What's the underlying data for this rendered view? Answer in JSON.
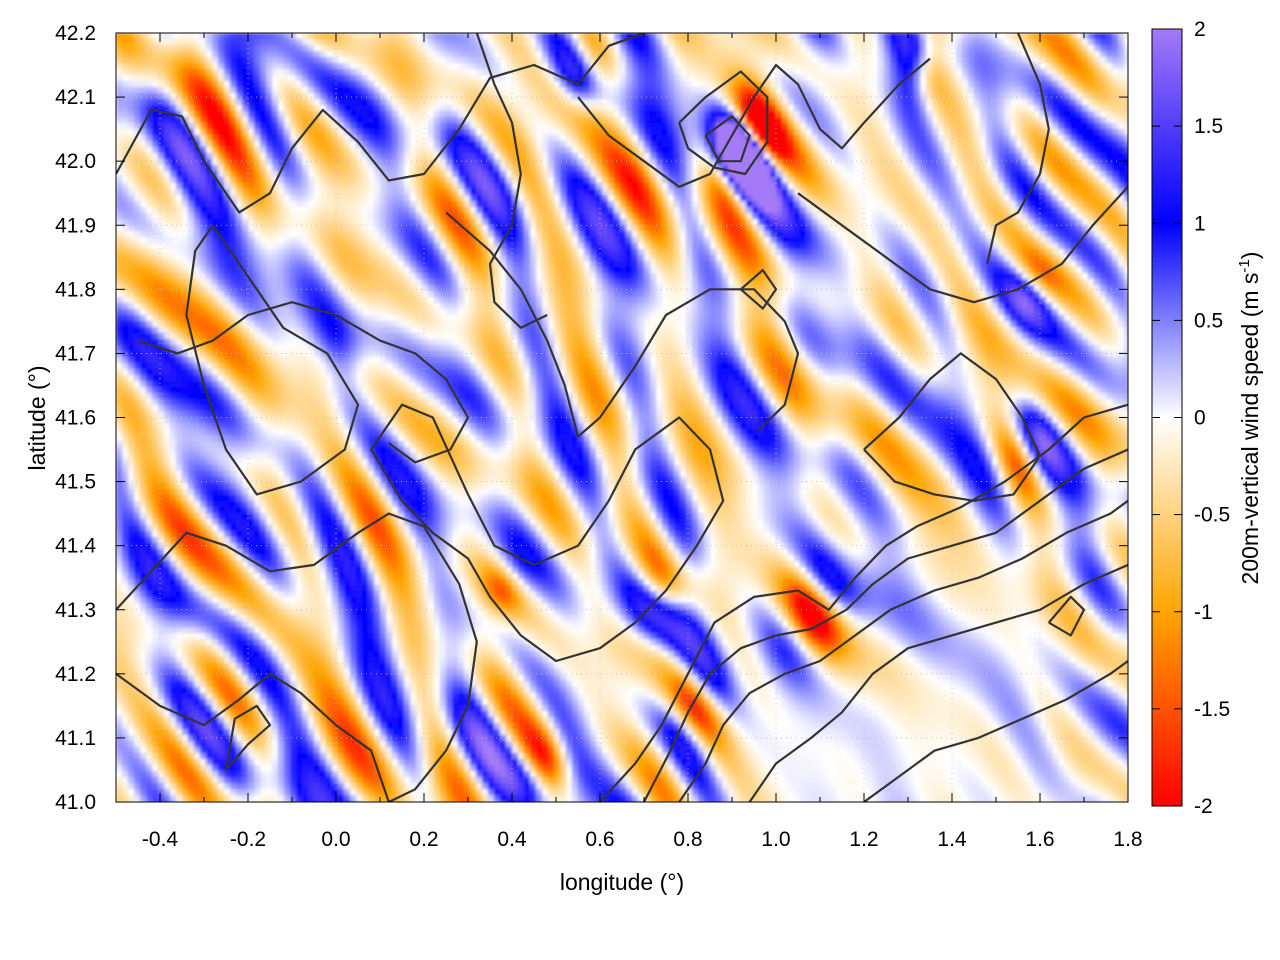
{
  "chart_data": {
    "type": "heatmap",
    "title": "",
    "xlabel": "longitude (°)",
    "ylabel": "latitude (°)",
    "colorbar_label": "200m-vertical wind speed",
    "colorbar_unit_open": "(m s",
    "colorbar_unit_exp": "-1",
    "colorbar_unit_close": ")",
    "xlim": [
      -0.5,
      1.8
    ],
    "ylim": [
      41.0,
      42.2
    ],
    "clim": [
      -2,
      2
    ],
    "grid": true,
    "x_ticks": [
      {
        "value": -0.4,
        "label": "-0.4"
      },
      {
        "value": -0.2,
        "label": "-0.2"
      },
      {
        "value": 0.0,
        "label": "0.0"
      },
      {
        "value": 0.2,
        "label": "0.2"
      },
      {
        "value": 0.4,
        "label": "0.4"
      },
      {
        "value": 0.6,
        "label": "0.6"
      },
      {
        "value": 0.8,
        "label": "0.8"
      },
      {
        "value": 1.0,
        "label": "1.0"
      },
      {
        "value": 1.2,
        "label": "1.2"
      },
      {
        "value": 1.4,
        "label": "1.4"
      },
      {
        "value": 1.6,
        "label": "1.6"
      },
      {
        "value": 1.8,
        "label": "1.8"
      }
    ],
    "y_ticks": [
      {
        "value": 41.0,
        "label": "41.0"
      },
      {
        "value": 41.1,
        "label": "41.1"
      },
      {
        "value": 41.2,
        "label": "41.2"
      },
      {
        "value": 41.3,
        "label": "41.3"
      },
      {
        "value": 41.4,
        "label": "41.4"
      },
      {
        "value": 41.5,
        "label": "41.5"
      },
      {
        "value": 41.6,
        "label": "41.6"
      },
      {
        "value": 41.7,
        "label": "41.7"
      },
      {
        "value": 41.8,
        "label": "41.8"
      },
      {
        "value": 41.9,
        "label": "41.9"
      },
      {
        "value": 42.0,
        "label": "42.0"
      },
      {
        "value": 42.1,
        "label": "42.1"
      },
      {
        "value": 42.2,
        "label": "42.2"
      }
    ],
    "colorbar_ticks": [
      {
        "value": 2,
        "label": "2"
      },
      {
        "value": 1.5,
        "label": "1.5"
      },
      {
        "value": 1,
        "label": "1"
      },
      {
        "value": 0.5,
        "label": "0.5"
      },
      {
        "value": 0,
        "label": "0"
      },
      {
        "value": -0.5,
        "label": "-0.5"
      },
      {
        "value": -1,
        "label": "-1"
      },
      {
        "value": -1.5,
        "label": "-1.5"
      },
      {
        "value": -2,
        "label": "-2"
      }
    ],
    "colormap": [
      {
        "value": -2,
        "color": "#ff0000"
      },
      {
        "value": -1,
        "color": "#ffa500"
      },
      {
        "value": 0,
        "color": "#ffffff"
      },
      {
        "value": 1,
        "color": "#0000ff"
      },
      {
        "value": 2,
        "color": "#a47af7"
      }
    ],
    "contour_color": "#333333",
    "contours": [
      [
        [
          -0.5,
          41.98
        ],
        [
          -0.42,
          42.08
        ],
        [
          -0.35,
          42.07
        ],
        [
          -0.3,
          42.0
        ],
        [
          -0.22,
          41.92
        ],
        [
          -0.15,
          41.95
        ],
        [
          -0.1,
          42.02
        ],
        [
          -0.03,
          42.08
        ],
        [
          0.05,
          42.03
        ],
        [
          0.12,
          41.97
        ],
        [
          0.2,
          41.98
        ],
        [
          0.28,
          42.05
        ],
        [
          0.35,
          42.13
        ],
        [
          0.45,
          42.15
        ],
        [
          0.55,
          42.12
        ],
        [
          0.62,
          42.18
        ],
        [
          0.7,
          42.2
        ]
      ],
      [
        [
          -0.28,
          41.9
        ],
        [
          -0.2,
          41.82
        ],
        [
          -0.12,
          41.74
        ],
        [
          -0.02,
          41.7
        ],
        [
          0.05,
          41.62
        ],
        [
          0.02,
          41.55
        ],
        [
          -0.08,
          41.5
        ],
        [
          -0.18,
          41.48
        ],
        [
          -0.25,
          41.55
        ],
        [
          -0.3,
          41.65
        ],
        [
          -0.34,
          41.76
        ],
        [
          -0.32,
          41.86
        ],
        [
          -0.28,
          41.9
        ]
      ],
      [
        [
          0.08,
          41.55
        ],
        [
          0.15,
          41.62
        ],
        [
          0.22,
          41.6
        ],
        [
          0.3,
          41.48
        ],
        [
          0.36,
          41.4
        ],
        [
          0.45,
          41.37
        ],
        [
          0.55,
          41.4
        ],
        [
          0.62,
          41.47
        ],
        [
          0.68,
          41.55
        ],
        [
          0.78,
          41.6
        ],
        [
          0.85,
          41.55
        ],
        [
          0.88,
          41.47
        ],
        [
          0.82,
          41.4
        ],
        [
          0.75,
          41.33
        ],
        [
          0.68,
          41.28
        ],
        [
          0.6,
          41.24
        ],
        [
          0.5,
          41.22
        ],
        [
          0.42,
          41.26
        ],
        [
          0.35,
          41.32
        ],
        [
          0.3,
          41.38
        ],
        [
          0.22,
          41.42
        ],
        [
          0.15,
          41.47
        ],
        [
          0.08,
          41.55
        ]
      ],
      [
        [
          0.25,
          41.92
        ],
        [
          0.35,
          41.86
        ],
        [
          0.42,
          41.8
        ],
        [
          0.48,
          41.72
        ],
        [
          0.52,
          41.65
        ],
        [
          0.55,
          41.57
        ],
        [
          0.6,
          41.6
        ],
        [
          0.68,
          41.68
        ],
        [
          0.75,
          41.76
        ],
        [
          0.85,
          41.8
        ],
        [
          0.95,
          41.8
        ],
        [
          1.02,
          41.75
        ],
        [
          1.05,
          41.7
        ],
        [
          1.02,
          41.62
        ],
        [
          0.96,
          41.58
        ]
      ],
      [
        [
          -0.5,
          41.3
        ],
        [
          -0.42,
          41.36
        ],
        [
          -0.34,
          41.42
        ],
        [
          -0.25,
          41.4
        ],
        [
          -0.15,
          41.36
        ],
        [
          -0.05,
          41.37
        ],
        [
          0.05,
          41.42
        ],
        [
          0.12,
          41.45
        ],
        [
          0.2,
          41.43
        ],
        [
          0.28,
          41.34
        ],
        [
          0.32,
          41.25
        ],
        [
          0.3,
          41.15
        ],
        [
          0.25,
          41.08
        ],
        [
          0.18,
          41.02
        ],
        [
          0.12,
          41.0
        ]
      ],
      [
        [
          -0.5,
          41.2
        ],
        [
          -0.4,
          41.15
        ],
        [
          -0.3,
          41.12
        ],
        [
          -0.22,
          41.16
        ],
        [
          -0.15,
          41.2
        ],
        [
          -0.08,
          41.17
        ],
        [
          0.0,
          41.12
        ],
        [
          0.08,
          41.08
        ],
        [
          0.12,
          41.0
        ]
      ],
      [
        [
          0.6,
          41.0
        ],
        [
          0.68,
          41.06
        ],
        [
          0.74,
          41.12
        ],
        [
          0.8,
          41.2
        ],
        [
          0.86,
          41.28
        ],
        [
          0.95,
          41.32
        ],
        [
          1.05,
          41.33
        ],
        [
          1.12,
          41.3
        ],
        [
          1.18,
          41.35
        ],
        [
          1.25,
          41.4
        ],
        [
          1.32,
          41.43
        ],
        [
          1.42,
          41.46
        ],
        [
          1.52,
          41.5
        ],
        [
          1.62,
          41.55
        ],
        [
          1.7,
          41.6
        ],
        [
          1.8,
          41.62
        ]
      ],
      [
        [
          0.7,
          41.0
        ],
        [
          0.76,
          41.08
        ],
        [
          0.8,
          41.14
        ],
        [
          0.85,
          41.2
        ],
        [
          0.92,
          41.24
        ],
        [
          1.0,
          41.26
        ],
        [
          1.08,
          41.27
        ],
        [
          1.16,
          41.3
        ],
        [
          1.22,
          41.34
        ],
        [
          1.3,
          41.38
        ],
        [
          1.4,
          41.4
        ],
        [
          1.5,
          41.42
        ],
        [
          1.6,
          41.47
        ],
        [
          1.7,
          41.52
        ],
        [
          1.8,
          41.55
        ]
      ],
      [
        [
          0.78,
          41.0
        ],
        [
          0.84,
          41.06
        ],
        [
          0.88,
          41.12
        ],
        [
          0.94,
          41.17
        ],
        [
          1.02,
          41.2
        ],
        [
          1.1,
          41.22
        ],
        [
          1.18,
          41.26
        ],
        [
          1.26,
          41.3
        ],
        [
          1.36,
          41.33
        ],
        [
          1.46,
          41.35
        ],
        [
          1.56,
          41.38
        ],
        [
          1.66,
          41.42
        ],
        [
          1.76,
          41.45
        ],
        [
          1.8,
          41.47
        ]
      ],
      [
        [
          0.94,
          41.0
        ],
        [
          1.0,
          41.06
        ],
        [
          1.08,
          41.1
        ],
        [
          1.15,
          41.14
        ],
        [
          1.22,
          41.2
        ],
        [
          1.3,
          41.24
        ],
        [
          1.4,
          41.26
        ],
        [
          1.5,
          41.28
        ],
        [
          1.6,
          41.3
        ],
        [
          1.7,
          41.34
        ],
        [
          1.8,
          41.37
        ]
      ],
      [
        [
          1.2,
          41.0
        ],
        [
          1.28,
          41.04
        ],
        [
          1.36,
          41.08
        ],
        [
          1.46,
          41.1
        ],
        [
          1.56,
          41.13
        ],
        [
          1.66,
          41.16
        ],
        [
          1.76,
          41.2
        ],
        [
          1.8,
          41.22
        ]
      ],
      [
        [
          0.55,
          42.1
        ],
        [
          0.62,
          42.04
        ],
        [
          0.7,
          42.0
        ],
        [
          0.78,
          41.96
        ],
        [
          0.85,
          41.98
        ],
        [
          0.9,
          42.04
        ],
        [
          0.95,
          42.1
        ],
        [
          1.0,
          42.15
        ],
        [
          1.05,
          42.12
        ],
        [
          1.1,
          42.05
        ],
        [
          1.15,
          42.02
        ],
        [
          1.2,
          42.06
        ],
        [
          1.28,
          42.12
        ],
        [
          1.35,
          42.16
        ]
      ],
      [
        [
          0.78,
          42.06
        ],
        [
          0.84,
          42.1
        ],
        [
          0.92,
          42.14
        ],
        [
          0.98,
          42.1
        ],
        [
          0.98,
          42.03
        ],
        [
          0.93,
          41.98
        ],
        [
          0.86,
          41.99
        ],
        [
          0.8,
          42.02
        ],
        [
          0.78,
          42.06
        ]
      ],
      [
        [
          0.84,
          42.04
        ],
        [
          0.9,
          42.07
        ],
        [
          0.94,
          42.04
        ],
        [
          0.92,
          42.0
        ],
        [
          0.87,
          42.0
        ],
        [
          0.84,
          42.04
        ]
      ],
      [
        [
          1.05,
          41.95
        ],
        [
          1.15,
          41.9
        ],
        [
          1.25,
          41.85
        ],
        [
          1.35,
          41.8
        ],
        [
          1.45,
          41.78
        ],
        [
          1.55,
          41.8
        ],
        [
          1.65,
          41.84
        ],
        [
          1.72,
          41.9
        ],
        [
          1.8,
          41.96
        ]
      ],
      [
        [
          1.2,
          41.55
        ],
        [
          1.28,
          41.6
        ],
        [
          1.35,
          41.66
        ],
        [
          1.42,
          41.7
        ],
        [
          1.5,
          41.66
        ],
        [
          1.56,
          41.6
        ],
        [
          1.6,
          41.54
        ],
        [
          1.54,
          41.48
        ],
        [
          1.45,
          41.47
        ],
        [
          1.36,
          41.48
        ],
        [
          1.27,
          41.5
        ],
        [
          1.2,
          41.55
        ]
      ],
      [
        [
          -0.45,
          41.72
        ],
        [
          -0.36,
          41.7
        ],
        [
          -0.28,
          41.72
        ],
        [
          -0.2,
          41.76
        ],
        [
          -0.1,
          41.78
        ],
        [
          0.0,
          41.76
        ],
        [
          0.1,
          41.72
        ],
        [
          0.18,
          41.7
        ],
        [
          0.25,
          41.66
        ],
        [
          0.3,
          41.6
        ],
        [
          0.26,
          41.55
        ],
        [
          0.18,
          41.53
        ],
        [
          0.12,
          41.56
        ]
      ],
      [
        [
          0.32,
          42.2
        ],
        [
          0.36,
          42.12
        ],
        [
          0.4,
          42.06
        ],
        [
          0.42,
          41.98
        ],
        [
          0.4,
          41.9
        ],
        [
          0.35,
          41.84
        ],
        [
          0.36,
          41.78
        ],
        [
          0.42,
          41.74
        ],
        [
          0.48,
          41.76
        ]
      ],
      [
        [
          1.55,
          42.2
        ],
        [
          1.6,
          42.12
        ],
        [
          1.62,
          42.05
        ],
        [
          1.6,
          41.98
        ],
        [
          1.55,
          41.92
        ],
        [
          1.5,
          41.9
        ],
        [
          1.48,
          41.84
        ]
      ],
      [
        [
          -0.25,
          41.05
        ],
        [
          -0.2,
          41.09
        ],
        [
          -0.15,
          41.12
        ],
        [
          -0.18,
          41.15
        ],
        [
          -0.23,
          41.13
        ],
        [
          -0.25,
          41.05
        ]
      ],
      [
        [
          0.92,
          41.8
        ],
        [
          0.97,
          41.83
        ],
        [
          1.0,
          41.8
        ],
        [
          0.97,
          41.77
        ],
        [
          0.92,
          41.8
        ]
      ],
      [
        [
          1.62,
          41.28
        ],
        [
          1.67,
          41.32
        ],
        [
          1.7,
          41.3
        ],
        [
          1.67,
          41.26
        ],
        [
          1.62,
          41.28
        ]
      ]
    ]
  }
}
